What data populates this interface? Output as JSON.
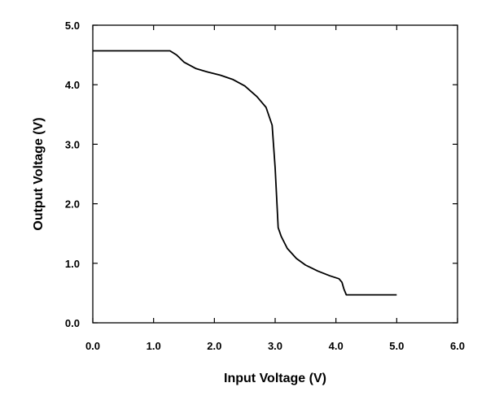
{
  "chart_data": {
    "type": "line",
    "title": "",
    "xlabel": "Input Voltage (V)",
    "ylabel": "Output Voltage (V)",
    "xlim": [
      0.0,
      6.0
    ],
    "ylim": [
      0.0,
      5.0
    ],
    "xticks": [
      "0.0",
      "1.0",
      "2.0",
      "3.0",
      "4.0",
      "5.0",
      "6.0"
    ],
    "yticks": [
      "0.0",
      "1.0",
      "2.0",
      "3.0",
      "4.0",
      "5.0"
    ],
    "grid": false,
    "legend": "none",
    "series": [
      {
        "x": [
          0.0,
          0.5,
          1.0,
          1.27,
          1.38,
          1.5,
          1.7,
          1.9,
          2.1,
          2.3,
          2.5,
          2.7,
          2.85,
          2.95,
          3.0,
          3.05,
          3.1,
          3.2,
          3.35,
          3.5,
          3.7,
          3.9,
          4.05,
          4.1,
          4.13,
          4.17,
          4.25,
          4.5,
          5.0
        ],
        "y": [
          4.57,
          4.57,
          4.57,
          4.57,
          4.5,
          4.38,
          4.27,
          4.21,
          4.16,
          4.09,
          3.98,
          3.8,
          3.62,
          3.32,
          2.6,
          1.6,
          1.45,
          1.25,
          1.08,
          0.97,
          0.87,
          0.79,
          0.74,
          0.68,
          0.57,
          0.47,
          0.47,
          0.47,
          0.47
        ]
      }
    ]
  },
  "colors": {
    "line": "#000000",
    "axes": "#000000",
    "background": "#ffffff"
  }
}
